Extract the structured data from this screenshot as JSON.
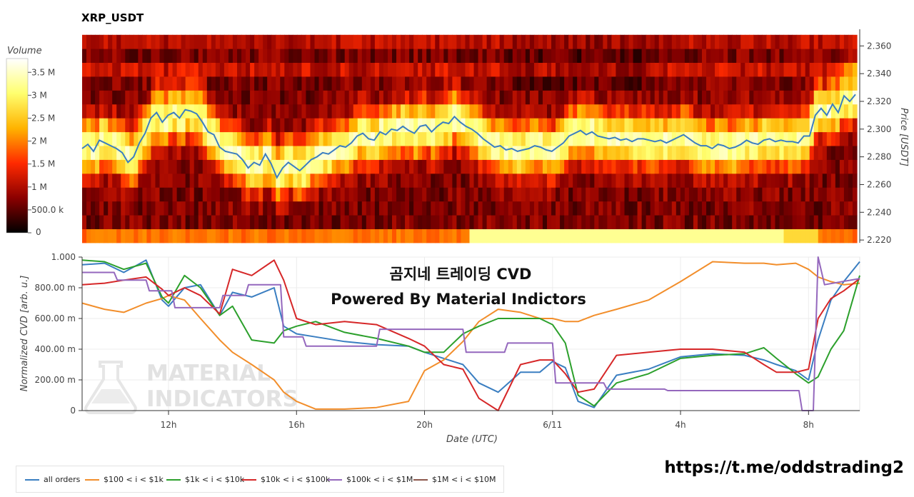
{
  "chart_data": [
    {
      "type": "heatmap",
      "title": "XRP_USDT",
      "ylabel": "Price [USDT]",
      "ylim": [
        2.218,
        2.372
      ],
      "yticks": [
        "2.220",
        "2.240",
        "2.260",
        "2.280",
        "2.300",
        "2.320",
        "2.340",
        "2.360"
      ],
      "ytick_values": [
        2.22,
        2.24,
        2.26,
        2.28,
        2.3,
        2.32,
        2.34,
        2.36
      ],
      "colorbar": {
        "label": "Volume",
        "range": [
          0,
          3800000
        ],
        "ticks": [
          "0",
          "500.0 k",
          "1 M",
          "1.5 M",
          "2 M",
          "2.5 M",
          "3 M",
          "3.5 M"
        ],
        "tick_values": [
          0,
          500000,
          1000000,
          1500000,
          2000000,
          2500000,
          3000000,
          3500000
        ],
        "colors": [
          "#000000",
          "#8b0000",
          "#ff2a00",
          "#ffb300",
          "#ffff6e",
          "#ffffff"
        ]
      },
      "price_line": {
        "color": "#3a7ec1",
        "x": [
          0,
          4,
          8,
          12,
          16,
          20,
          24,
          28,
          32,
          36,
          40,
          44,
          48,
          52,
          56,
          60,
          64,
          68,
          72,
          76,
          80,
          84,
          88,
          92,
          96,
          100,
          104,
          108,
          112,
          116,
          120,
          124,
          128,
          132,
          136,
          140,
          144,
          148,
          152,
          156,
          160,
          164,
          168,
          172,
          176,
          180,
          184,
          188,
          192,
          196,
          200,
          204,
          208,
          212,
          216,
          220,
          224,
          228,
          232,
          236,
          240,
          244,
          248,
          252,
          256,
          260,
          264,
          268,
          272,
          276,
          280,
          284,
          288,
          292,
          296,
          300,
          304,
          308,
          312,
          316,
          320,
          324,
          328,
          332,
          336,
          340,
          344,
          348,
          352,
          356,
          360,
          364,
          368,
          372,
          376,
          380,
          384,
          388,
          392,
          396,
          400,
          404,
          408,
          412,
          416,
          420,
          424,
          428,
          432,
          436,
          440,
          444,
          448,
          452,
          456,
          460,
          464,
          468,
          472,
          476,
          480,
          484,
          488,
          492,
          496,
          500,
          504,
          508,
          512,
          516,
          520,
          524,
          528,
          532,
          536,
          540
        ],
        "y": [
          2.286,
          2.289,
          2.284,
          2.292,
          2.29,
          2.288,
          2.286,
          2.283,
          2.276,
          2.28,
          2.29,
          2.297,
          2.308,
          2.312,
          2.305,
          2.31,
          2.312,
          2.308,
          2.314,
          2.313,
          2.311,
          2.305,
          2.298,
          2.296,
          2.287,
          2.284,
          2.283,
          2.282,
          2.278,
          2.272,
          2.276,
          2.274,
          2.282,
          2.275,
          2.265,
          2.272,
          2.276,
          2.273,
          2.27,
          2.274,
          2.278,
          2.28,
          2.283,
          2.282,
          2.285,
          2.288,
          2.287,
          2.29,
          2.295,
          2.297,
          2.293,
          2.292,
          2.298,
          2.296,
          2.3,
          2.299,
          2.302,
          2.299,
          2.297,
          2.302,
          2.303,
          2.298,
          2.302,
          2.305,
          2.304,
          2.309,
          2.305,
          2.302,
          2.3,
          2.297,
          2.293,
          2.29,
          2.287,
          2.288,
          2.285,
          2.286,
          2.284,
          2.285,
          2.286,
          2.288,
          2.287,
          2.285,
          2.284,
          2.287,
          2.29,
          2.295,
          2.297,
          2.299,
          2.296,
          2.298,
          2.295,
          2.294,
          2.293,
          2.294,
          2.292,
          2.293,
          2.291,
          2.293,
          2.293,
          2.292,
          2.291,
          2.292,
          2.29,
          2.292,
          2.294,
          2.296,
          2.293,
          2.29,
          2.288,
          2.288,
          2.286,
          2.289,
          2.288,
          2.286,
          2.287,
          2.289,
          2.292,
          2.29,
          2.289,
          2.292,
          2.293,
          2.291,
          2.292,
          2.291,
          2.291,
          2.29,
          2.295,
          2.295,
          2.31,
          2.315,
          2.31,
          2.318,
          2.312,
          2.324,
          2.32,
          2.325
        ]
      }
    },
    {
      "type": "line",
      "xlabel": "Date (UTC)",
      "ylabel": "Normalized CVD [arb. u.]",
      "ylim": [
        0,
        1
      ],
      "xlim": [
        9.3,
        33.6
      ],
      "xticks": [
        "12h",
        "16h",
        "20h",
        "6/11",
        "4h",
        "8h"
      ],
      "xtick_values": [
        12,
        16,
        20,
        24,
        28,
        32
      ],
      "yticks": [
        "0",
        "200.00 m",
        "400.00 m",
        "600.00 m",
        "800.00 m",
        "1.000"
      ],
      "ytick_values": [
        0,
        0.2,
        0.4,
        0.6,
        0.8,
        1.0
      ],
      "overlay_title": [
        "곰지네 트레이딩 CVD",
        "Powered By Material Indictors"
      ],
      "watermark": [
        "MATERIAL",
        "INDICATORS"
      ],
      "series": [
        {
          "name": "all orders",
          "color": "#3a7ec1",
          "x": [
            9.3,
            10,
            10.6,
            11.3,
            11.8,
            12,
            12.5,
            13,
            13.6,
            14,
            14.6,
            15.3,
            15.6,
            16,
            16.6,
            17.5,
            18.5,
            19.5,
            20,
            20.6,
            21.2,
            21.7,
            22.3,
            23,
            23.6,
            24,
            24.4,
            24.8,
            25.3,
            26,
            27,
            28,
            29,
            30,
            30.6,
            31,
            31.6,
            32,
            32.3,
            32.7,
            33.1,
            33.6
          ],
          "y": [
            0.95,
            0.96,
            0.9,
            0.98,
            0.72,
            0.68,
            0.8,
            0.82,
            0.62,
            0.77,
            0.74,
            0.8,
            0.55,
            0.5,
            0.48,
            0.45,
            0.43,
            0.42,
            0.38,
            0.34,
            0.3,
            0.18,
            0.12,
            0.25,
            0.25,
            0.32,
            0.28,
            0.06,
            0.02,
            0.23,
            0.27,
            0.35,
            0.37,
            0.36,
            0.33,
            0.3,
            0.26,
            0.2,
            0.46,
            0.72,
            0.84,
            0.97
          ]
        },
        {
          "name": "$100 < i < $1k",
          "color": "#f28e2b",
          "x": [
            9.3,
            10,
            10.6,
            11.3,
            11.8,
            12,
            12.5,
            13,
            13.6,
            14,
            14.6,
            15.3,
            15.6,
            16,
            16.6,
            17.5,
            18.5,
            19.5,
            20,
            20.6,
            21.2,
            21.7,
            22.3,
            23,
            23.6,
            24,
            24.4,
            24.8,
            25.3,
            26,
            27,
            28,
            29,
            30,
            30.6,
            31,
            31.6,
            32,
            32.3,
            32.7,
            33.1,
            33.6
          ],
          "y": [
            0.7,
            0.66,
            0.64,
            0.7,
            0.73,
            0.75,
            0.72,
            0.6,
            0.46,
            0.38,
            0.3,
            0.2,
            0.12,
            0.06,
            0.01,
            0.01,
            0.02,
            0.06,
            0.26,
            0.33,
            0.45,
            0.58,
            0.66,
            0.64,
            0.6,
            0.6,
            0.58,
            0.58,
            0.62,
            0.66,
            0.72,
            0.84,
            0.97,
            0.96,
            0.96,
            0.95,
            0.96,
            0.92,
            0.87,
            0.84,
            0.82,
            0.83
          ]
        },
        {
          "name": "$1k < i < $10k",
          "color": "#2ca02c",
          "x": [
            9.3,
            10,
            10.6,
            11.3,
            11.8,
            12,
            12.5,
            13,
            13.6,
            14,
            14.6,
            15.3,
            15.6,
            16,
            16.6,
            17.5,
            18.5,
            19.5,
            20,
            20.6,
            21.2,
            21.7,
            22.3,
            23,
            23.6,
            24,
            24.4,
            24.8,
            25.3,
            26,
            27,
            28,
            29,
            30,
            30.6,
            31,
            31.6,
            32,
            32.3,
            32.7,
            33.1,
            33.6
          ],
          "y": [
            0.98,
            0.97,
            0.92,
            0.96,
            0.74,
            0.7,
            0.88,
            0.8,
            0.62,
            0.68,
            0.46,
            0.44,
            0.52,
            0.55,
            0.58,
            0.51,
            0.47,
            0.42,
            0.38,
            0.38,
            0.5,
            0.55,
            0.6,
            0.6,
            0.6,
            0.56,
            0.44,
            0.1,
            0.03,
            0.18,
            0.24,
            0.34,
            0.36,
            0.37,
            0.41,
            0.34,
            0.24,
            0.18,
            0.22,
            0.4,
            0.52,
            0.88
          ]
        },
        {
          "name": "$10k < i < $100k",
          "color": "#d62728",
          "x": [
            9.3,
            10,
            10.6,
            11.3,
            11.8,
            12,
            12.5,
            13,
            13.6,
            14,
            14.6,
            15.3,
            15.6,
            16,
            16.6,
            17.5,
            18.5,
            19.5,
            20,
            20.6,
            21.2,
            21.7,
            22.3,
            23,
            23.6,
            24,
            24.4,
            24.8,
            25.3,
            26,
            27,
            28,
            29,
            30,
            30.6,
            31,
            31.6,
            32,
            32.3,
            32.7,
            33.1,
            33.6
          ],
          "y": [
            0.82,
            0.83,
            0.85,
            0.87,
            0.79,
            0.75,
            0.8,
            0.75,
            0.63,
            0.92,
            0.88,
            0.98,
            0.85,
            0.6,
            0.56,
            0.58,
            0.56,
            0.47,
            0.42,
            0.3,
            0.27,
            0.08,
            0.0,
            0.3,
            0.33,
            0.33,
            0.24,
            0.12,
            0.14,
            0.36,
            0.38,
            0.4,
            0.4,
            0.38,
            0.3,
            0.25,
            0.25,
            0.27,
            0.6,
            0.73,
            0.78,
            0.86
          ]
        },
        {
          "name": "$100k < i < $1M",
          "color": "#9467bd",
          "x": [
            9.3,
            10.3,
            10.4,
            11.3,
            11.4,
            12.1,
            12.2,
            13.6,
            13.7,
            14.4,
            14.5,
            15.5,
            15.6,
            16.2,
            16.3,
            18.5,
            18.6,
            20,
            20.1,
            21.2,
            21.3,
            22.5,
            22.6,
            24,
            24.1,
            25.6,
            25.7,
            27.5,
            27.6,
            30.5,
            30.6,
            31.7,
            31.8,
            32,
            32.15,
            32.3,
            32.5,
            33.6
          ],
          "y": [
            0.9,
            0.9,
            0.85,
            0.85,
            0.78,
            0.78,
            0.67,
            0.67,
            0.75,
            0.75,
            0.82,
            0.82,
            0.48,
            0.48,
            0.42,
            0.42,
            0.53,
            0.53,
            0.53,
            0.53,
            0.38,
            0.38,
            0.44,
            0.44,
            0.18,
            0.18,
            0.14,
            0.14,
            0.13,
            0.13,
            0.13,
            0.13,
            0.0,
            0.0,
            0.0,
            1.0,
            0.82,
            0.86
          ]
        },
        {
          "name": "$1M < i < $10M",
          "color": "#8c564b",
          "x": [],
          "y": []
        }
      ]
    }
  ],
  "url_text": "https://t.me/oddstrading2"
}
